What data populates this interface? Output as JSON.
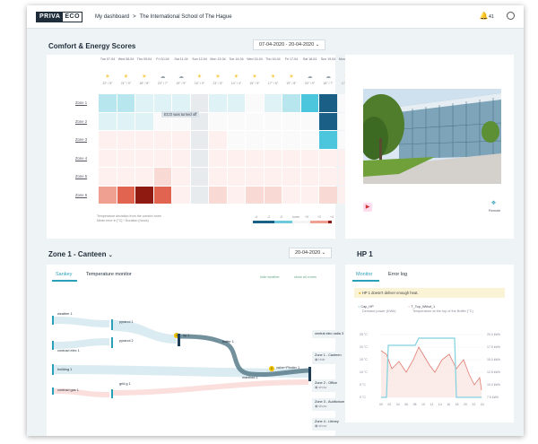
{
  "brand": {
    "part1": "PRIVA",
    "part2": "ECO"
  },
  "breadcrumb": {
    "home": "My dashboard",
    "sep": ">",
    "site": "The International School of The Hague"
  },
  "topbar": {
    "notification_count": "41"
  },
  "comfort": {
    "title": "Comfort & Energy Scores",
    "date_range": "07-04-2020 - 20-04-2020",
    "days": [
      {
        "d": "Tue",
        "n": "07-04",
        "t": "22° / 8°",
        "icon": "sun"
      },
      {
        "d": "Wed",
        "n": "08-04",
        "t": "21° / 9°",
        "icon": "sun"
      },
      {
        "d": "Thu",
        "n": "09-04",
        "t": "18° / 8°",
        "icon": "sun"
      },
      {
        "d": "Fri",
        "n": "10-04",
        "t": "20° / 7°",
        "icon": "cloud"
      },
      {
        "d": "Sat",
        "n": "11-04",
        "t": "19° / 9°",
        "icon": "cloud"
      },
      {
        "d": "Sun",
        "n": "12-04",
        "t": "16° / 9°",
        "icon": "sun"
      },
      {
        "d": "Mon",
        "n": "13-04",
        "t": "13° / 5°",
        "icon": "sun"
      },
      {
        "d": "Tue",
        "n": "14-04",
        "t": "14° / 4°",
        "icon": "sun"
      },
      {
        "d": "Wed",
        "n": "15-04",
        "t": "15° / 5°",
        "icon": "sun"
      },
      {
        "d": "Thu",
        "n": "16-04",
        "t": "17° / 6°",
        "icon": "sun"
      },
      {
        "d": "Fri",
        "n": "17-04",
        "t": "19° / 8°",
        "icon": "sun"
      },
      {
        "d": "Sat",
        "n": "18-04",
        "t": "20° / 9°",
        "icon": "cloud"
      },
      {
        "d": "Sun",
        "n": "19-04",
        "t": "18° / 7°",
        "icon": "cloud"
      },
      {
        "d": "Mon",
        "n": "20-04",
        "t": "17° / 8°",
        "icon": "sun"
      }
    ],
    "zones": [
      "Zone 1",
      "Zone 2",
      "Zone 3",
      "Zone 4",
      "Zone 5",
      "Zone 6"
    ],
    "tooltip": "ECO was turned off",
    "note_line1": "Temperature deviation from the comfort norm",
    "note_line2": "Mean error in [°C] * Duration (hours)",
    "scale_labels": [
      "-4",
      "-2",
      "-0",
      "norm",
      "+0",
      "+2",
      "+4"
    ]
  },
  "colors": {
    "accent": "#2a9fb8",
    "dark": "#1f2d3a",
    "cold": "#1a5f86",
    "hot": "#8e1a12"
  },
  "camera": {
    "remote_label": "Remote"
  },
  "zone_panel": {
    "title": "Zone 1 - Canteen",
    "date": "20-04-2020",
    "tabs": [
      "Sankey",
      "Temperature monitor"
    ],
    "links": [
      "hide weather",
      "show all zones"
    ],
    "sources": [
      "weather 1",
      "contract elec 1",
      "building 1",
      "contract gas 1"
    ],
    "mid": [
      "pyranol 1",
      "pyranol 2",
      "grid g 1"
    ],
    "center": [
      "hp 1",
      "buffer 1",
      "manifold 1",
      "valve+Pboiler 1"
    ],
    "destinations": [
      {
        "name": "central elec radia 3",
        "action": ""
      },
      {
        "name": "Zone 1 - Canteen",
        "action": "hide"
      },
      {
        "name": "Zone 2 - Office",
        "action": "show"
      },
      {
        "name": "Zone 3 - Auditorium",
        "action": "show"
      },
      {
        "name": "Zone 4 - Library",
        "action": "show"
      }
    ],
    "marker1": "1",
    "marker2": "2"
  },
  "hp_panel": {
    "title": "HP 1",
    "tabs": [
      "Monitor",
      "Error log"
    ],
    "warning": "HP 1 doesn't deliver enough heat.",
    "legend1_title": "Cap_HP",
    "legend1_sub": "Demand power (KWh)",
    "legend2_title": "T_Top_Wtbuf_1",
    "legend2_sub": "Temperature at the top of the Buffer (°C)",
    "y_left": [
      "25 °C",
      "20 °C",
      "15 °C",
      "10 °C",
      "5 °C",
      "0 °C"
    ],
    "y_right": [
      "20.0 kWh",
      "17.5 kWh",
      "15.0 kWh",
      "12.5 kWh",
      "10.0 kWh",
      "7.5 kWh"
    ],
    "x_ticks": [
      "00",
      "02",
      "04",
      "06",
      "08",
      "10",
      "12",
      "14",
      "16",
      "18",
      "20",
      "22",
      "24"
    ]
  }
}
